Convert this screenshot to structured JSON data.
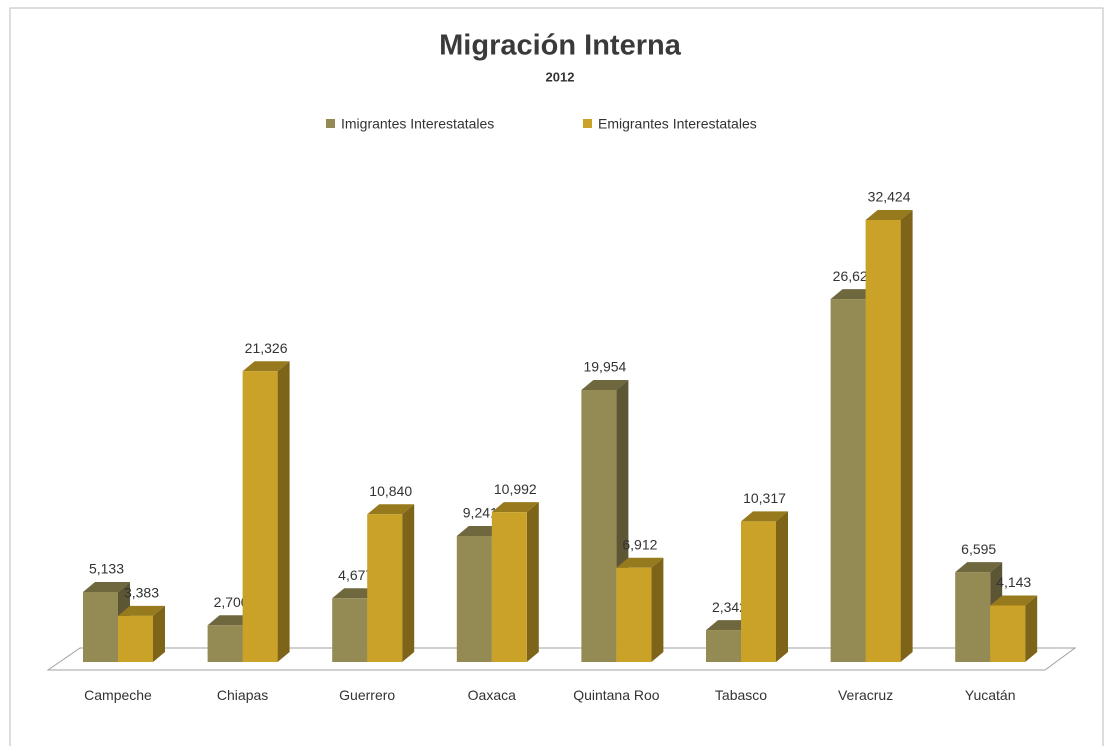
{
  "chart_data": {
    "type": "bar3d",
    "title": "Migración Interna",
    "subtitle": "2012",
    "categories": [
      "Campeche",
      "Chiapas",
      "Guerrero",
      "Oaxaca",
      "Quintana Roo",
      "Tabasco",
      "Veracruz",
      "Yucatán"
    ],
    "series": [
      {
        "name": "Imigrantes Interestatales",
        "color": "#948a54",
        "values": [
          5133,
          2700,
          4677,
          9241,
          19954,
          2342,
          26621,
          6595
        ],
        "value_labels": [
          "5,133",
          "2,700",
          "4,677",
          "9,241",
          "19,954",
          "2,342",
          "26,621",
          "6,595"
        ]
      },
      {
        "name": "Emigrantes Interestatales",
        "color": "#c9a227",
        "values": [
          3383,
          21326,
          10840,
          10992,
          6912,
          10317,
          32424,
          4143
        ],
        "value_labels": [
          "3,383",
          "21,326",
          "10,840",
          "10,992",
          "6,912",
          "10,317",
          "32,424",
          "4,143"
        ]
      }
    ],
    "legend": "top"
  }
}
